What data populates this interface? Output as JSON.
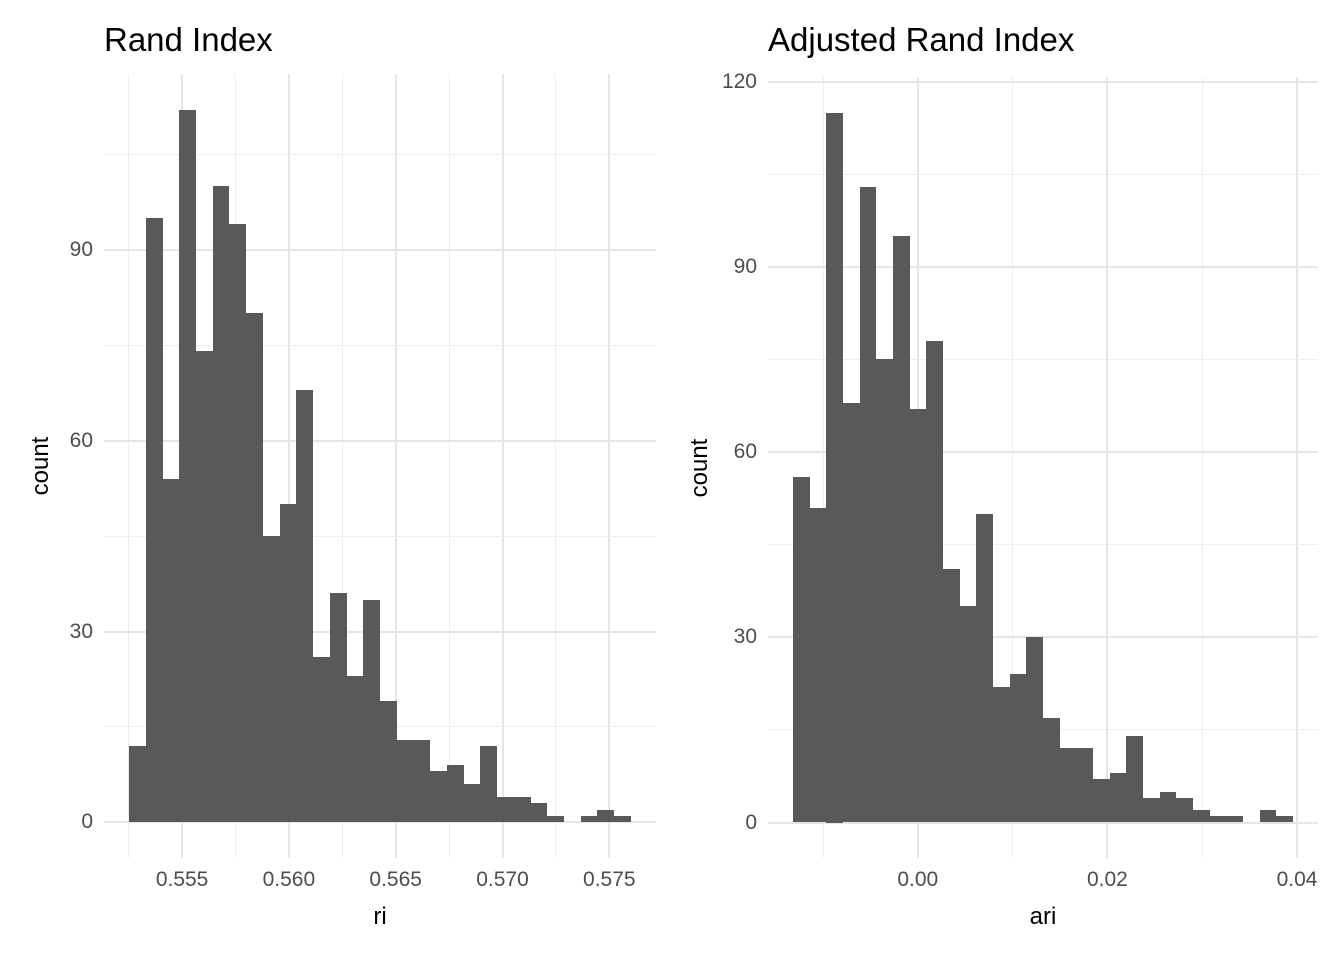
{
  "figure": {
    "background": "#ffffff",
    "colors": {
      "bar_fill": "#595959",
      "grid_major": "#e5e5e5",
      "grid_minor": "#ededed",
      "tick_label": "#4d4d4d",
      "title_text": "#000000"
    }
  },
  "chart_data": [
    {
      "type": "bar",
      "subtype": "histogram",
      "title": "Rand Index",
      "xlabel": "ri",
      "ylabel": "count",
      "bin_start": 0.55252,
      "bin_width": 0.000783,
      "counts": [
        12,
        95,
        54,
        112,
        74,
        100,
        94,
        80,
        45,
        50,
        68,
        26,
        36,
        23,
        35,
        19,
        13,
        13,
        8,
        9,
        6,
        12,
        4,
        4,
        3,
        1,
        0,
        1,
        2,
        1
      ],
      "total_n": 1000,
      "x_ticks": [
        0.555,
        0.56,
        0.565,
        0.57,
        0.575
      ],
      "x_tick_labels": [
        "0.555",
        "0.560",
        "0.565",
        "0.570",
        "0.575"
      ],
      "y_ticks": [
        0,
        30,
        60,
        90
      ],
      "y_tick_labels": [
        "0",
        "30",
        "60",
        "90"
      ],
      "x_range": [
        0.551345,
        0.577185
      ],
      "y_range": [
        -5.6,
        117.6
      ],
      "grid": true,
      "legend": null
    },
    {
      "type": "bar",
      "subtype": "histogram",
      "title": "Adjusted Rand Index",
      "xlabel": "ari",
      "ylabel": "count",
      "bin_start": -0.01317,
      "bin_width": 0.001758,
      "counts": [
        56,
        51,
        115,
        68,
        103,
        75,
        95,
        67,
        78,
        41,
        35,
        50,
        22,
        24,
        30,
        17,
        12,
        12,
        7,
        8,
        14,
        4,
        5,
        4,
        2,
        1,
        1,
        0,
        2,
        1
      ],
      "total_n": 1000,
      "x_ticks": [
        0.0,
        0.02,
        0.04
      ],
      "x_tick_labels": [
        "0.00",
        "0.02",
        "0.04"
      ],
      "y_ticks": [
        0,
        30,
        60,
        90,
        120
      ],
      "y_tick_labels": [
        "0",
        "30",
        "60",
        "90",
        "120"
      ],
      "x_range": [
        -0.015808,
        0.042218
      ],
      "y_range": [
        -5.75,
        120.75
      ],
      "grid": true,
      "legend": null
    }
  ]
}
